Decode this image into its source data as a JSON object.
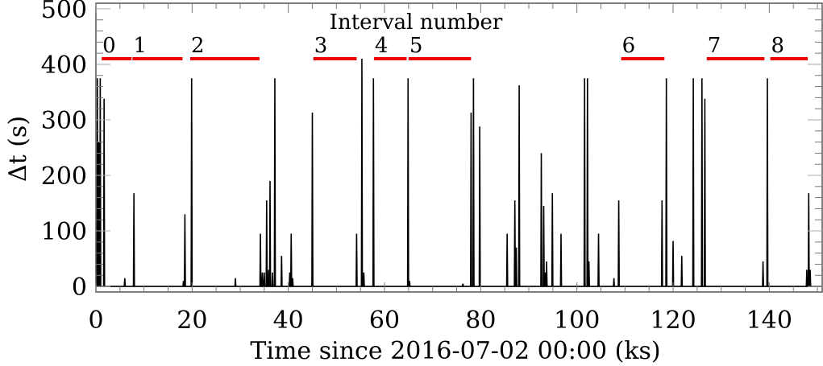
{
  "chart_data": {
    "type": "line",
    "title": "",
    "xlabel": "Time since 2016-07-02 00:00 (ks)",
    "ylabel": "Δt (s)",
    "xlim": [
      0,
      151
    ],
    "ylim": [
      -10,
      510
    ],
    "xticks": [
      0,
      20,
      40,
      60,
      80,
      100,
      120,
      140
    ],
    "yticks": [
      0,
      100,
      200,
      300,
      400,
      500
    ],
    "grid": false,
    "legend": null,
    "annotation_title": "Interval number",
    "intervals": [
      {
        "label": "0",
        "start": 1.2,
        "end": 7.4
      },
      {
        "label": "1",
        "start": 7.6,
        "end": 18.0
      },
      {
        "label": "2",
        "start": 19.6,
        "end": 34.0
      },
      {
        "label": "3",
        "start": 45.2,
        "end": 54.2
      },
      {
        "label": "4",
        "start": 57.8,
        "end": 64.6
      },
      {
        "label": "5",
        "start": 65.0,
        "end": 78.0
      },
      {
        "label": "6",
        "start": 109.2,
        "end": 118.2
      },
      {
        "label": "7",
        "start": 127.0,
        "end": 139.0
      },
      {
        "label": "8",
        "start": 140.2,
        "end": 148.0
      }
    ],
    "interval_color": "#ee0000",
    "line_color": "#000000",
    "spikes": [
      {
        "x": 0.3,
        "y": 375
      },
      {
        "x": 0.6,
        "y": 260
      },
      {
        "x": 0.9,
        "y": 375
      },
      {
        "x": 1.7,
        "y": 338
      },
      {
        "x": 6.0,
        "y": 15
      },
      {
        "x": 7.9,
        "y": 168
      },
      {
        "x": 18.2,
        "y": 10
      },
      {
        "x": 18.5,
        "y": 130
      },
      {
        "x": 19.9,
        "y": 375
      },
      {
        "x": 29.0,
        "y": 15
      },
      {
        "x": 34.2,
        "y": 95
      },
      {
        "x": 34.6,
        "y": 25
      },
      {
        "x": 35.0,
        "y": 25
      },
      {
        "x": 35.5,
        "y": 155
      },
      {
        "x": 35.9,
        "y": 30
      },
      {
        "x": 36.2,
        "y": 190
      },
      {
        "x": 36.7,
        "y": 25
      },
      {
        "x": 37.2,
        "y": 375
      },
      {
        "x": 38.6,
        "y": 55
      },
      {
        "x": 40.3,
        "y": 25
      },
      {
        "x": 40.6,
        "y": 95
      },
      {
        "x": 40.9,
        "y": 15
      },
      {
        "x": 45.0,
        "y": 313
      },
      {
        "x": 54.2,
        "y": 95
      },
      {
        "x": 55.3,
        "y": 410
      },
      {
        "x": 55.7,
        "y": 25
      },
      {
        "x": 57.7,
        "y": 375
      },
      {
        "x": 64.9,
        "y": 375
      },
      {
        "x": 65.2,
        "y": 10
      },
      {
        "x": 76.3,
        "y": 5
      },
      {
        "x": 78.0,
        "y": 313
      },
      {
        "x": 78.5,
        "y": 375
      },
      {
        "x": 79.8,
        "y": 288
      },
      {
        "x": 85.5,
        "y": 95
      },
      {
        "x": 87.1,
        "y": 155
      },
      {
        "x": 87.4,
        "y": 70
      },
      {
        "x": 88.0,
        "y": 362
      },
      {
        "x": 92.6,
        "y": 240
      },
      {
        "x": 93.1,
        "y": 145
      },
      {
        "x": 93.4,
        "y": 25
      },
      {
        "x": 93.7,
        "y": 45
      },
      {
        "x": 94.9,
        "y": 168
      },
      {
        "x": 96.7,
        "y": 95
      },
      {
        "x": 101.6,
        "y": 375
      },
      {
        "x": 102.2,
        "y": 375
      },
      {
        "x": 102.5,
        "y": 45
      },
      {
        "x": 104.5,
        "y": 95
      },
      {
        "x": 107.7,
        "y": 15
      },
      {
        "x": 108.7,
        "y": 155
      },
      {
        "x": 117.7,
        "y": 155
      },
      {
        "x": 118.6,
        "y": 375
      },
      {
        "x": 120.0,
        "y": 82
      },
      {
        "x": 121.8,
        "y": 55
      },
      {
        "x": 124.2,
        "y": 375
      },
      {
        "x": 126.0,
        "y": 375
      },
      {
        "x": 126.6,
        "y": 338
      },
      {
        "x": 138.7,
        "y": 45
      },
      {
        "x": 139.6,
        "y": 375
      },
      {
        "x": 147.8,
        "y": 30
      },
      {
        "x": 148.2,
        "y": 168
      },
      {
        "x": 148.5,
        "y": 30
      }
    ]
  }
}
